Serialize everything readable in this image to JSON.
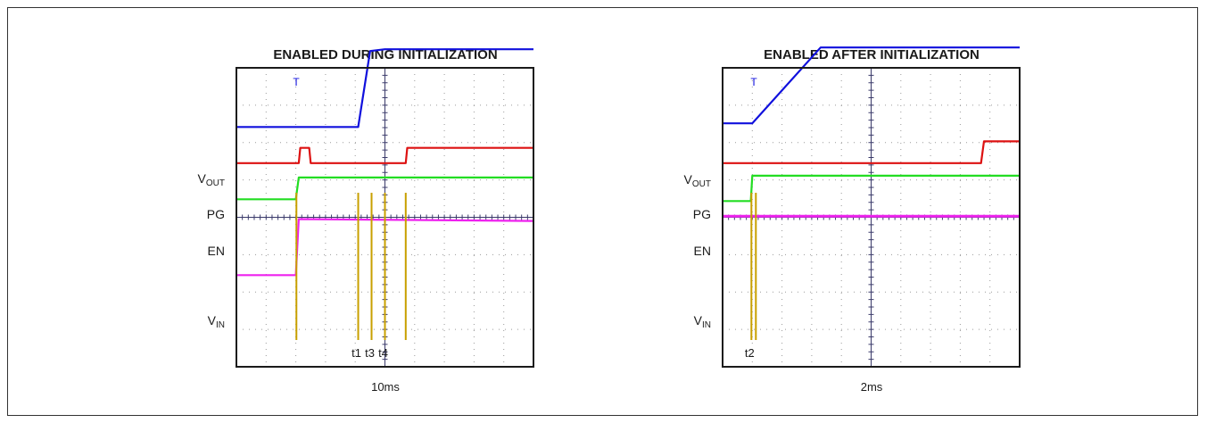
{
  "chart_data": [
    {
      "type": "line",
      "title": "ENABLED DURING INITIALIZATION",
      "time_scale": "10ms",
      "x_divisions": 10,
      "y_divisions": 8,
      "grid": true,
      "trigger_marker": "T",
      "channels": [
        {
          "name": "VOUT",
          "label_main": "V",
          "label_sub": "OUT",
          "color": "#1010dd",
          "points": [
            [
              0,
              2.5
            ],
            [
              4.1,
              2.5
            ],
            [
              4.5,
              4.6
            ],
            [
              5.0,
              4.65
            ],
            [
              10,
              4.65
            ]
          ]
        },
        {
          "name": "PG",
          "label_main": "PG",
          "label_sub": "",
          "color": "#dd1111",
          "points": [
            [
              0,
              1.5
            ],
            [
              2.1,
              1.5
            ],
            [
              2.15,
              1.92
            ],
            [
              2.45,
              1.92
            ],
            [
              2.5,
              1.5
            ],
            [
              5.7,
              1.5
            ],
            [
              5.75,
              1.92
            ],
            [
              10,
              1.92
            ]
          ]
        },
        {
          "name": "EN",
          "label_main": "EN",
          "label_sub": "",
          "color": "#22dd22",
          "points": [
            [
              0,
              0.5
            ],
            [
              2.0,
              0.5
            ],
            [
              2.1,
              1.1
            ],
            [
              10,
              1.1
            ]
          ]
        },
        {
          "name": "VIN",
          "label_main": "V",
          "label_sub": "IN",
          "color": "#ee22ee",
          "points": [
            [
              0,
              -1.6
            ],
            [
              2.0,
              -1.6
            ],
            [
              2.1,
              -0.05
            ],
            [
              10,
              -0.1
            ]
          ]
        }
      ],
      "timing_markers": [
        {
          "x": 2.02,
          "label": ""
        },
        {
          "x": 4.1,
          "label": "t1"
        },
        {
          "x": 4.55,
          "label": "t3"
        },
        {
          "x": 5.0,
          "label": "t4"
        },
        {
          "x": 5.7,
          "label": ""
        }
      ]
    },
    {
      "type": "line",
      "title": "ENABLED AFTER INITIALIZATION",
      "time_scale": "2ms",
      "x_divisions": 10,
      "y_divisions": 8,
      "grid": true,
      "trigger_marker": "T",
      "channels": [
        {
          "name": "VOUT",
          "label_main": "V",
          "label_sub": "OUT",
          "color": "#1010dd",
          "points": [
            [
              0,
              2.6
            ],
            [
              1.0,
              2.6
            ],
            [
              3.3,
              4.7
            ],
            [
              10,
              4.7
            ]
          ]
        },
        {
          "name": "PG",
          "label_main": "PG",
          "label_sub": "",
          "color": "#dd1111",
          "points": [
            [
              0,
              1.5
            ],
            [
              8.7,
              1.5
            ],
            [
              8.8,
              2.1
            ],
            [
              10,
              2.1
            ]
          ]
        },
        {
          "name": "EN",
          "label_main": "EN",
          "label_sub": "",
          "color": "#22dd22",
          "points": [
            [
              0,
              0.45
            ],
            [
              0.95,
              0.45
            ],
            [
              1.0,
              1.15
            ],
            [
              10,
              1.15
            ]
          ]
        },
        {
          "name": "VIN",
          "label_main": "V",
          "label_sub": "IN",
          "color": "#ee22ee",
          "points": [
            [
              0,
              0.03
            ],
            [
              10,
              0.03
            ]
          ]
        }
      ],
      "timing_markers": [
        {
          "x": 0.97,
          "label": "t2"
        },
        {
          "x": 1.12,
          "label": ""
        }
      ]
    }
  ]
}
